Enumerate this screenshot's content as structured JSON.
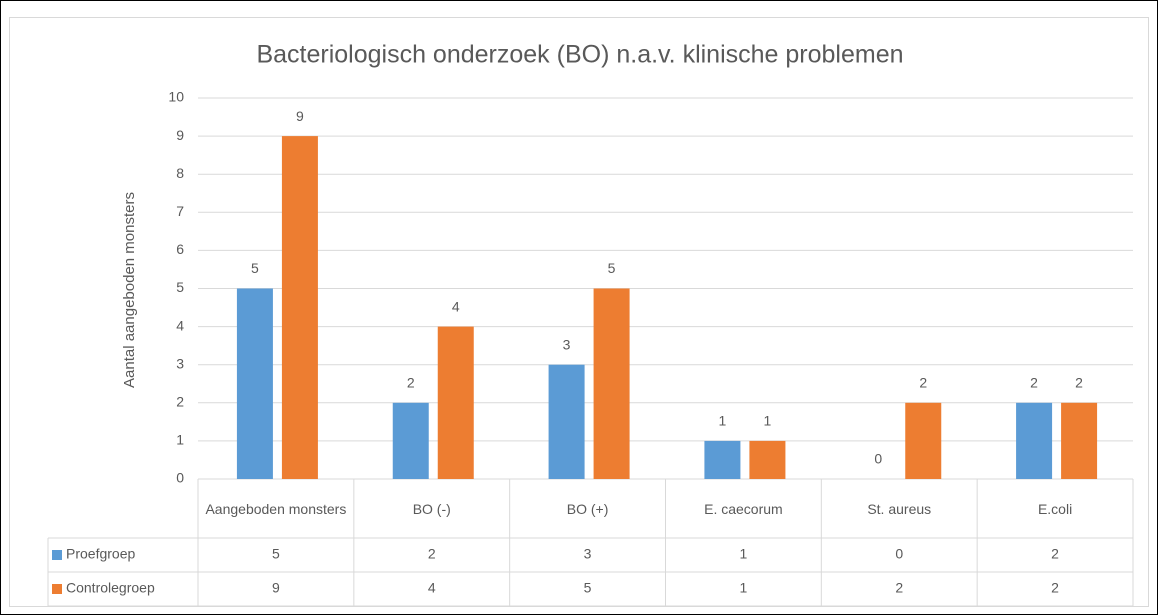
{
  "chart_data": {
    "type": "bar",
    "title": "Bacteriologisch onderzoek (BO) n.a.v. klinische problemen",
    "y_label": "Aantal aangeboden monsters",
    "categories": [
      "Aangeboden monsters",
      "BO (-)",
      "BO (+)",
      "E. caecorum",
      "St. aureus",
      "E.coli"
    ],
    "series": [
      {
        "name": "Proefgroep",
        "color": "#5b9bd5",
        "values": [
          5,
          2,
          3,
          1,
          0,
          2
        ]
      },
      {
        "name": "Controlegroep",
        "color": "#ed7d31",
        "values": [
          9,
          4,
          5,
          1,
          2,
          2
        ]
      }
    ],
    "ylim": [
      0,
      10
    ],
    "yticks": [
      0,
      1,
      2,
      3,
      4,
      5,
      6,
      7,
      8,
      9,
      10
    ],
    "grid": true,
    "data_table": true
  }
}
